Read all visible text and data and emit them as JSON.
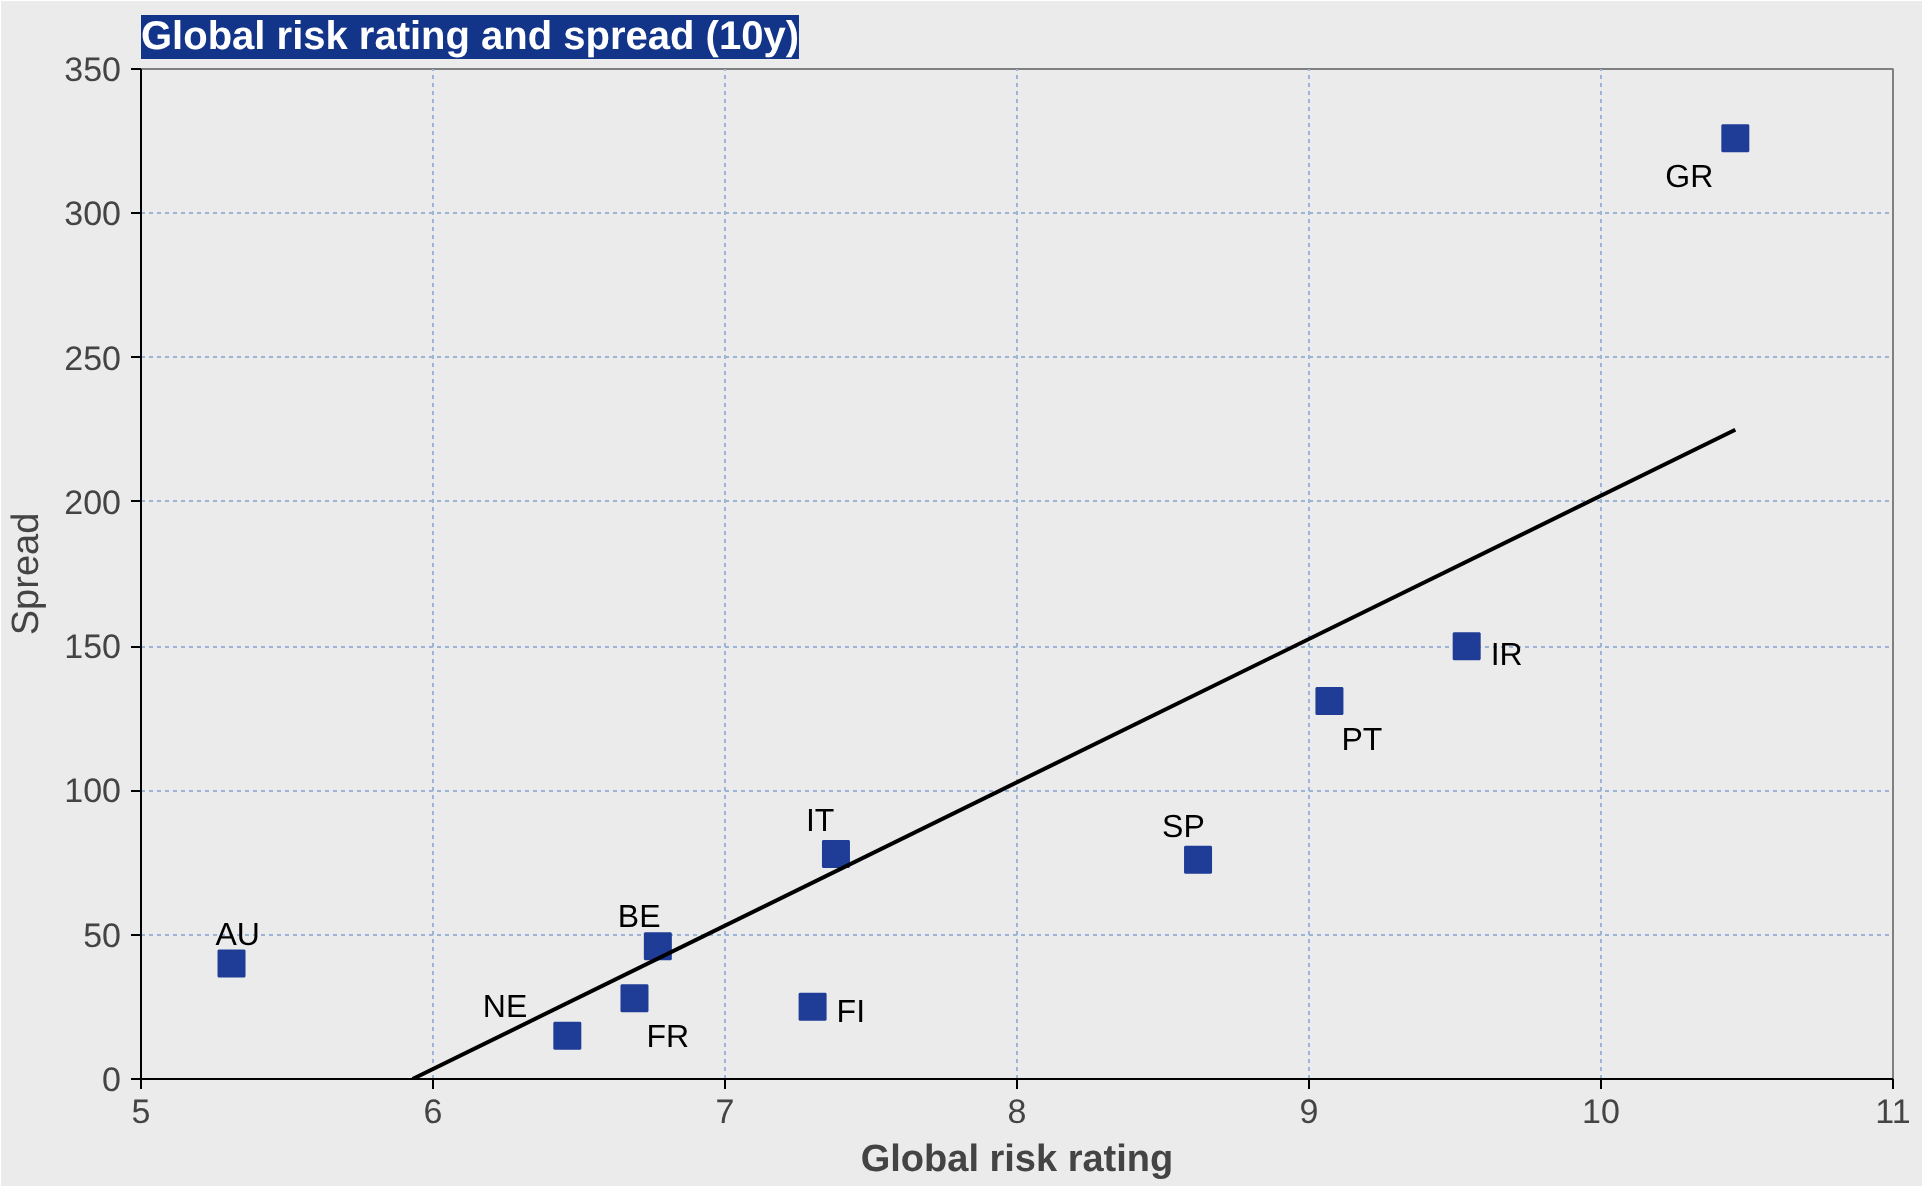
{
  "chart_data": {
    "type": "scatter",
    "title": "Global risk rating and spread (10y)",
    "xlabel": "Global risk rating",
    "ylabel": "Spread",
    "series": [
      {
        "color": "#1f3c96",
        "marker": "square",
        "x": [
          5.31,
          6.46,
          6.69,
          6.77,
          7.3,
          7.38,
          8.62,
          9.07,
          9.54,
          10.46
        ],
        "values": [
          40,
          15,
          28,
          46,
          25,
          78,
          76,
          131,
          150,
          326
        ]
      },
      {
        "type": "line",
        "color": "#000000",
        "line_style": "solid",
        "x": [
          5.93,
          10.46
        ],
        "values": [
          0,
          225
        ]
      }
    ],
    "annotations": [
      {
        "text": "AU",
        "x": 5.31,
        "y": 40
      },
      {
        "text": "NE",
        "x": 6.46,
        "y": 15
      },
      {
        "text": "FR",
        "x": 6.69,
        "y": 28
      },
      {
        "text": "BE",
        "x": 6.77,
        "y": 46
      },
      {
        "text": "FI",
        "x": 7.3,
        "y": 25
      },
      {
        "text": "IT",
        "x": 7.38,
        "y": 78
      },
      {
        "text": "SP",
        "x": 8.62,
        "y": 76
      },
      {
        "text": "PT",
        "x": 9.07,
        "y": 131
      },
      {
        "text": "IR",
        "x": 9.54,
        "y": 150
      },
      {
        "text": "GR",
        "x": 10.46,
        "y": 326
      }
    ],
    "xlim": [
      5,
      11
    ],
    "xticks": [
      5,
      6,
      7,
      8,
      9,
      10,
      11
    ],
    "ylim": [
      0,
      350
    ],
    "yticks": [
      0,
      50,
      100,
      150,
      200,
      250,
      300,
      350
    ],
    "grid": true
  }
}
